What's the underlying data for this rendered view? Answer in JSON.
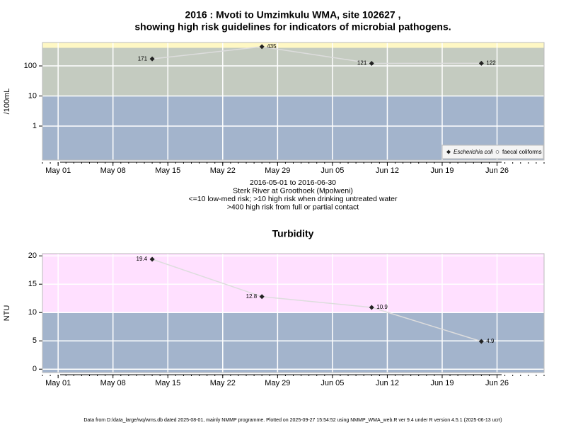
{
  "chart_data": [
    {
      "type": "line",
      "title": [
        "2016 : Mvoti to Umzimkulu WMA, site 102627 ,",
        "showing high risk guidelines for indicators of microbial pathogens."
      ],
      "subtitle": [
        "2016-05-01 to 2016-06-30",
        "Sterk River at Groothoek (Mpolweni)",
        "<=10 low-med risk; >10 high risk when drinking untreated water",
        ">400 high risk from full or partial contact"
      ],
      "ylabel": "/100mL",
      "log_scale": true,
      "x": [
        "May 13",
        "May 27",
        "Jun 10",
        "Jun 24"
      ],
      "series": [
        {
          "name": "Escherichia coli",
          "color": "#222222",
          "line_color": "#dddddd",
          "marker": "diamond",
          "values": [
            171,
            435,
            121,
            122
          ]
        },
        {
          "name": "faecal coliforms",
          "color": "#ffffff",
          "line_color": "#dddddd",
          "marker": "circle",
          "values": [
            null,
            null,
            null,
            null
          ]
        }
      ],
      "thresholds": [
        10,
        400
      ],
      "band_colors": [
        "#a3b4cc",
        "#c4cbc0",
        "#fff8c4"
      ],
      "xlim": [
        "Apr 29",
        "Jul 02"
      ],
      "xticks": [
        "May 01",
        "May 08",
        "May 15",
        "May 22",
        "May 29",
        "Jun 05",
        "Jun 12",
        "Jun 19",
        "Jun 26"
      ],
      "ylim": [
        0.074,
        600
      ],
      "yticks": [
        1,
        10,
        100
      ],
      "grid": true,
      "legend": "bottom-right"
    },
    {
      "type": "line",
      "title": [
        "Turbidity"
      ],
      "ylabel": "NTU",
      "log_scale": false,
      "x": [
        "May 13",
        "May 27",
        "Jun 10",
        "Jun 24"
      ],
      "series": [
        {
          "color": "#222222",
          "line_color": "#dddddd",
          "marker": "diamond",
          "values": [
            19.4,
            12.8,
            10.9,
            4.9
          ]
        }
      ],
      "thresholds": [
        10
      ],
      "band_colors": [
        "#a3b4cc",
        "#ffe0ff"
      ],
      "xlim": [
        "Apr 29",
        "Jul 02"
      ],
      "xticks": [
        "May 01",
        "May 08",
        "May 15",
        "May 22",
        "May 29",
        "Jun 05",
        "Jun 12",
        "Jun 19",
        "Jun 26"
      ],
      "ylim": [
        -0.6,
        20.4
      ],
      "yticks": [
        0,
        5,
        10,
        15,
        20
      ],
      "grid": true
    }
  ],
  "footer": "Data from D:/data_large/wq/wms.db dated 2025-08-01, mainly NMMP programme. Plotted on 2025-09-27 15:54:52 using NMMP_WMA_web.R ver 9.4 under R version 4.5.1 (2025-06-13 ucrt)"
}
